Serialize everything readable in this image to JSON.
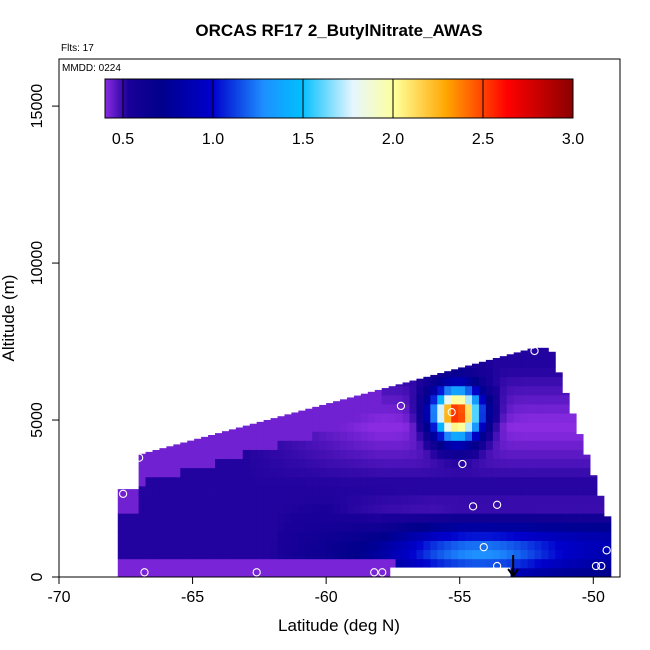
{
  "chart_data": {
    "type": "heatmap",
    "title": "ORCAS RF17 2_ButylNitrate_AWAS",
    "flights_label": "Flts: 17",
    "date_label": "MMDD: 0224",
    "xlabel": "Latitude (deg N)",
    "ylabel": "Altitude (m)",
    "xlim": [
      -70,
      -49
    ],
    "ylim": [
      0,
      16500
    ],
    "x_ticks": [
      -70,
      -65,
      -60,
      -55,
      -50
    ],
    "y_ticks": [
      0,
      5000,
      10000,
      15000
    ],
    "x_tick_labels": [
      "-70",
      "-65",
      "-60",
      "-55",
      "-50"
    ],
    "y_tick_labels": [
      "0",
      "5000",
      "10000",
      "15000"
    ],
    "colorbar": {
      "min": 0.4,
      "max": 3.0,
      "ticks": [
        0.5,
        1.0,
        1.5,
        2.0,
        2.5,
        3.0
      ],
      "tick_labels": [
        "0.5",
        "1.0",
        "1.5",
        "2.0",
        "2.5",
        "3.0"
      ],
      "colors": [
        "#8a2be2",
        "#00008b",
        "#0000cd",
        "#1e90ff",
        "#00bfff",
        "#e6f6ff",
        "#ffff99",
        "#ffa500",
        "#ff0000",
        "#8b0000"
      ],
      "placement": "top-inside"
    },
    "sample_points": [
      {
        "lat": -67.6,
        "alt": 2650
      },
      {
        "lat": -67.0,
        "alt": 3800
      },
      {
        "lat": -66.8,
        "alt": 150
      },
      {
        "lat": -62.6,
        "alt": 150
      },
      {
        "lat": -58.2,
        "alt": 150
      },
      {
        "lat": -57.9,
        "alt": 150
      },
      {
        "lat": -57.2,
        "alt": 5450
      },
      {
        "lat": -55.3,
        "alt": 5250
      },
      {
        "lat": -54.9,
        "alt": 3600
      },
      {
        "lat": -54.5,
        "alt": 2250
      },
      {
        "lat": -53.6,
        "alt": 2300
      },
      {
        "lat": -54.1,
        "alt": 950
      },
      {
        "lat": -53.6,
        "alt": 350
      },
      {
        "lat": -52.2,
        "alt": 7200
      },
      {
        "lat": -49.9,
        "alt": 350
      },
      {
        "lat": -49.7,
        "alt": 350
      },
      {
        "lat": -49.5,
        "alt": 850
      }
    ],
    "arrow": {
      "lat": -53.0,
      "alt_from": 700,
      "alt_to": 0
    }
  }
}
